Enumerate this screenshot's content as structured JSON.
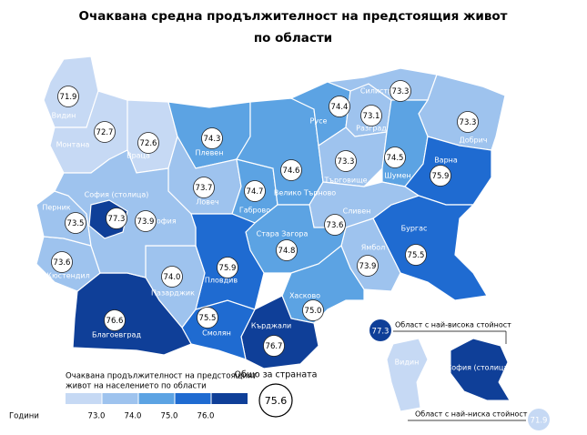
{
  "map": {
    "title": [
      "Очаквана средна продължителност на предстоящия живот",
      "по области"
    ],
    "regions": [
      {
        "name": "Видин",
        "value": 71.9
      },
      {
        "name": "Монтана",
        "value": 72.7
      },
      {
        "name": "Враца",
        "value": 72.6
      },
      {
        "name": "Плевен",
        "value": 74.3
      },
      {
        "name": "Ловеч",
        "value": 73.7
      },
      {
        "name": "Габрово",
        "value": 74.7
      },
      {
        "name": "Велико Търново",
        "value": 74.6
      },
      {
        "name": "Русе",
        "value": 74.4
      },
      {
        "name": "Разград",
        "value": 73.1
      },
      {
        "name": "Силистра",
        "value": 73.3
      },
      {
        "name": "Добрич",
        "value": 73.3
      },
      {
        "name": "Търговище",
        "value": 73.3
      },
      {
        "name": "Шумен",
        "value": 74.5
      },
      {
        "name": "Варна",
        "value": 75.9
      },
      {
        "name": "Бургас",
        "value": 75.5
      },
      {
        "name": "Сливен",
        "value": 73.6
      },
      {
        "name": "Ямбол",
        "value": 73.9
      },
      {
        "name": "Стара Загора",
        "value": 74.8
      },
      {
        "name": "Хасково",
        "value": 75,
        "value_label": "75.0"
      },
      {
        "name": "Кърджали",
        "value": 76.7
      },
      {
        "name": "Смолян",
        "value": 75.5
      },
      {
        "name": "Пловдив",
        "value": 75.9
      },
      {
        "name": "Пазарджик",
        "value": 74,
        "value_label": "74.0"
      },
      {
        "name": "Благоевград",
        "value": 76.6
      },
      {
        "name": "Кюстендил",
        "value": 73.6
      },
      {
        "name": "Перник",
        "value": 73.5
      },
      {
        "name": "София",
        "value": 73.9
      },
      {
        "name": "София (столица)",
        "value": 77.3
      }
    ],
    "legend": {
      "title": [
        "Очаквана продължителност на предстоящият",
        "живот на населението по области"
      ],
      "unit": "Години",
      "ticks": [
        {
          "value": 73,
          "label": "73.0"
        },
        {
          "value": 74,
          "label": "74.0"
        },
        {
          "value": 75,
          "label": "75.0"
        },
        {
          "value": 76,
          "label": "76.0"
        }
      ],
      "colors": [
        "#c6d9f4",
        "#9ec3ee",
        "#5ca3e3",
        "#1f6bd1",
        "#0f3f98"
      ]
    },
    "national": {
      "label": "Общо за страната",
      "value": 75.6
    },
    "highest": {
      "label": "Област с най-висока стойност",
      "value": 77.3,
      "name": "София (столица)"
    },
    "lowest": {
      "label": "Област с най-ниска стойност",
      "value": 71.9,
      "name": "Видин"
    }
  }
}
